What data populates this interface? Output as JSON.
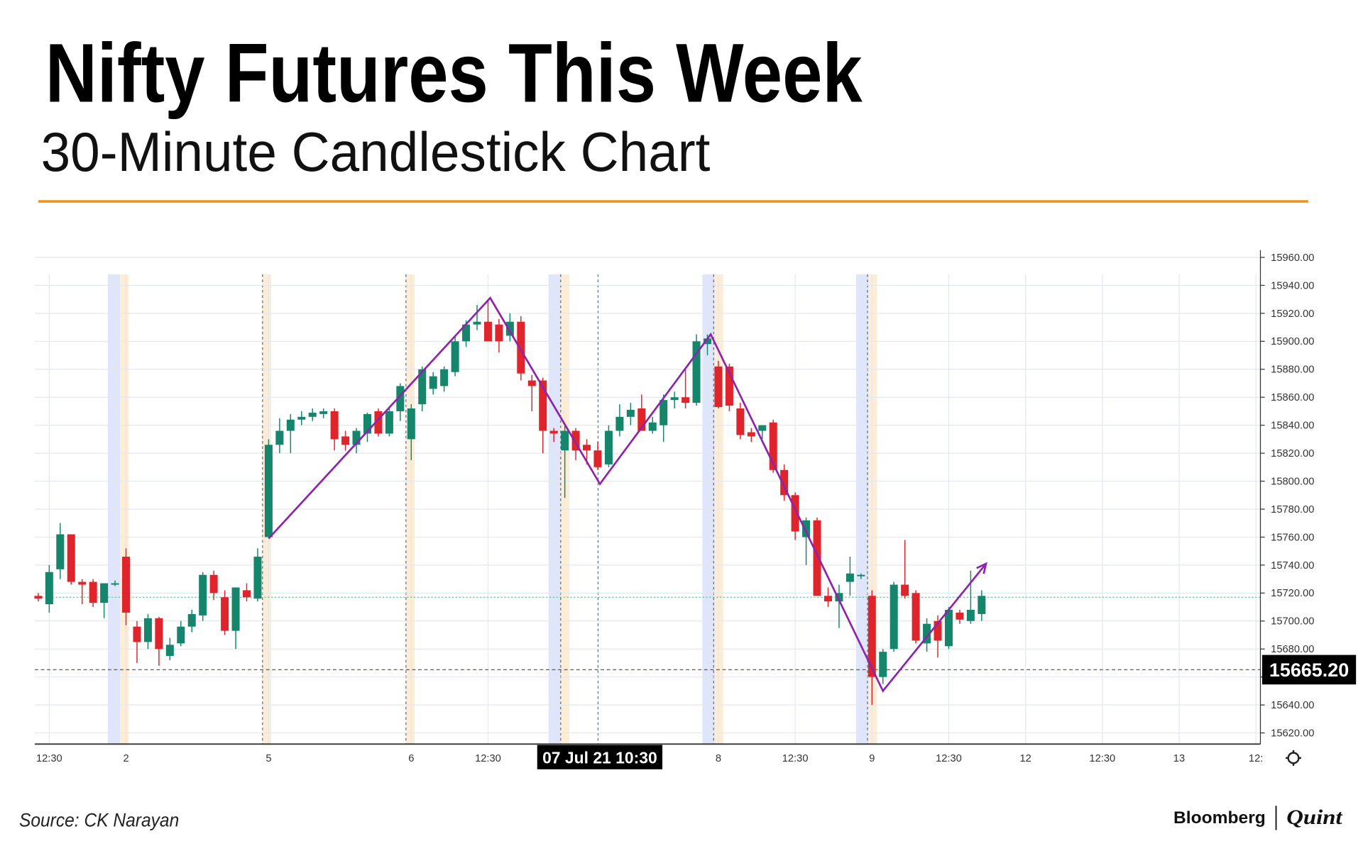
{
  "title": "Nifty Futures This Week",
  "subtitle": "30-Minute Candlestick Chart",
  "source": "Source: CK Narayan",
  "branding": {
    "left": "Bloomberg",
    "right": "Quint"
  },
  "chart_data": {
    "type": "candlestick",
    "up_color": "#15866b",
    "down_color": "#e0242b",
    "grid": true,
    "categories": [
      null,
      "12:30",
      null,
      null,
      null,
      null,
      null,
      null,
      "2",
      null,
      null,
      null,
      null,
      null,
      null,
      null,
      null,
      null,
      null,
      null,
      null,
      "5",
      null,
      null,
      null,
      null,
      null,
      null,
      null,
      null,
      null,
      null,
      null,
      null,
      "6",
      null,
      null,
      null,
      null,
      null,
      null,
      "12:30",
      null,
      null,
      null,
      null,
      null,
      null,
      null,
      null,
      null,
      null,
      null,
      null,
      null,
      null,
      null,
      null,
      null,
      null,
      null,
      null,
      "8",
      null,
      null,
      null,
      null,
      null,
      null,
      "12:30",
      null,
      null,
      null,
      null,
      null,
      null,
      "9",
      null,
      null,
      null,
      null,
      null,
      null,
      "12:30",
      null,
      null,
      null,
      null,
      null,
      null,
      "12",
      null,
      null,
      null,
      null,
      null,
      null,
      "12:30",
      null,
      null,
      null,
      null,
      null,
      null,
      "13",
      null,
      null,
      null,
      null,
      null,
      null,
      "12:"
    ],
    "open": [
      15718,
      15712,
      15737,
      15762,
      15728,
      15728,
      15713,
      15726,
      15746,
      15696,
      15685,
      15702,
      15675,
      15684,
      15696,
      15704,
      15733,
      15717,
      15693,
      15722,
      15716,
      15760,
      15826,
      15836,
      15844,
      15846,
      15848,
      15850,
      15832,
      15826,
      15834,
      15850,
      15834,
      15850,
      15830,
      15855,
      15866,
      15868,
      15878,
      15900,
      15912,
      15914,
      15912,
      15904,
      15914,
      15872,
      15872,
      15836,
      15822,
      15836,
      15826,
      15822,
      15812,
      15836,
      15846,
      15852,
      15836,
      15840,
      15858,
      15860,
      15856,
      15898,
      15882,
      15882,
      15852,
      15835,
      15836,
      15842,
      15808,
      15790,
      15760,
      15772,
      15718,
      15714,
      15728,
      15732,
      15718,
      15660,
      15680,
      15726,
      15720,
      15684,
      15700,
      15682,
      15706,
      15700,
      15705,
      null,
      null,
      null,
      null,
      null,
      null,
      null,
      null,
      null,
      null,
      null,
      null,
      null,
      null,
      null,
      null,
      null,
      null,
      null,
      null,
      null,
      null,
      null,
      null,
      null
    ],
    "high": [
      15720,
      15740,
      15770,
      15762,
      15730,
      15730,
      15727,
      15729,
      15752,
      15700,
      15705,
      15703,
      15688,
      15700,
      15708,
      15735,
      15736,
      15722,
      15724,
      15727,
      15752,
      15830,
      15845,
      15848,
      15850,
      15852,
      15852,
      15852,
      15836,
      15838,
      15849,
      15852,
      15852,
      15870,
      15855,
      15882,
      15878,
      15882,
      15904,
      15915,
      15926,
      15930,
      15916,
      15920,
      15918,
      15876,
      15874,
      15838,
      15840,
      15838,
      15830,
      15828,
      15840,
      15855,
      15856,
      15862,
      15846,
      15862,
      15864,
      15880,
      15905,
      15905,
      15886,
      15884,
      15856,
      15838,
      15840,
      15844,
      15812,
      15792,
      15774,
      15774,
      15724,
      15726,
      15746,
      15734,
      15722,
      15680,
      15728,
      15758,
      15722,
      15702,
      15704,
      15710,
      15708,
      15736,
      15722,
      null,
      null,
      null,
      null,
      null,
      null,
      null,
      null,
      null,
      null,
      null,
      null,
      null,
      null,
      null,
      null,
      null,
      null,
      null,
      null,
      null,
      null,
      null,
      null,
      null
    ],
    "low": [
      15714,
      15706,
      15730,
      15726,
      15712,
      15710,
      15702,
      15725,
      15697,
      15670,
      15680,
      15668,
      15672,
      15682,
      15692,
      15700,
      15715,
      15690,
      15680,
      15714,
      15714,
      15760,
      15820,
      15820,
      15840,
      15843,
      15845,
      15822,
      15822,
      15820,
      15828,
      15832,
      15832,
      15843,
      15815,
      15850,
      15862,
      15864,
      15875,
      15896,
      15908,
      15900,
      15892,
      15900,
      15872,
      15850,
      15820,
      15828,
      15788,
      15815,
      15812,
      15808,
      15810,
      15832,
      15840,
      15836,
      15834,
      15828,
      15852,
      15852,
      15854,
      15890,
      15852,
      15850,
      15830,
      15828,
      15830,
      15806,
      15786,
      15758,
      15740,
      15718,
      15710,
      15695,
      15718,
      15730,
      15640,
      15655,
      15678,
      15716,
      15684,
      15678,
      15674,
      15680,
      15698,
      15698,
      15700,
      null,
      null,
      null,
      null,
      null,
      null,
      null,
      null,
      null,
      null,
      null,
      null,
      null,
      null,
      null,
      null,
      null,
      null,
      null,
      null,
      null,
      null,
      null,
      null,
      null
    ],
    "close": [
      15716,
      15735,
      15762,
      15728,
      15726,
      15713,
      15727,
      15727,
      15706,
      15685,
      15702,
      15680,
      15683,
      15696,
      15705,
      15733,
      15720,
      15693,
      15724,
      15717,
      15746,
      15826,
      15836,
      15844,
      15846,
      15849,
      15850,
      15830,
      15826,
      15836,
      15848,
      15834,
      15850,
      15868,
      15852,
      15880,
      15875,
      15880,
      15900,
      15912,
      15914,
      15900,
      15900,
      15914,
      15877,
      15868,
      15836,
      15834,
      15836,
      15822,
      15822,
      15810,
      15836,
      15846,
      15851,
      15836,
      15842,
      15858,
      15860,
      15856,
      15900,
      15902,
      15853,
      15854,
      15833,
      15832,
      15840,
      15808,
      15790,
      15764,
      15772,
      15718,
      15714,
      15720,
      15734,
      15733,
      15660,
      15678,
      15726,
      15718,
      15686,
      15698,
      15686,
      15708,
      15701,
      15708,
      15718,
      null,
      null,
      null,
      null,
      null,
      null,
      null,
      null,
      null,
      null,
      null,
      null,
      null,
      null,
      null,
      null,
      null,
      null,
      null,
      null,
      null,
      null,
      null,
      null,
      null
    ],
    "ylim": [
      15612,
      15964
    ],
    "yticks": [
      {
        "value": 15620,
        "label": "15620.00"
      },
      {
        "value": 15640,
        "label": "15640.00"
      },
      {
        "value": 15660,
        "label": "15660.00"
      },
      {
        "value": 15680,
        "label": "15680.00"
      },
      {
        "value": 15700,
        "label": "15700.00"
      },
      {
        "value": 15720,
        "label": "15720.00"
      },
      {
        "value": 15740,
        "label": "15740.00"
      },
      {
        "value": 15760,
        "label": "15760.00"
      },
      {
        "value": 15780,
        "label": "15780.00"
      },
      {
        "value": 15800,
        "label": "15800.00"
      },
      {
        "value": 15820,
        "label": "15820.00"
      },
      {
        "value": 15840,
        "label": "15840.00"
      },
      {
        "value": 15860,
        "label": "15860.00"
      },
      {
        "value": 15880,
        "label": "15880.00"
      },
      {
        "value": 15900,
        "label": "15900.00"
      },
      {
        "value": 15920,
        "label": "15920.00"
      },
      {
        "value": 15940,
        "label": "15940.00"
      },
      {
        "value": 15960,
        "label": "15960.00"
      }
    ],
    "last_price": {
      "value": 15665.2,
      "label": "15665.20"
    },
    "reference_line": 15717,
    "crosshair_label": "07 Jul 21 10:30",
    "pattern": {
      "color": "#8e24aa",
      "x": [
        21,
        41.2,
        51.2,
        61.3,
        77,
        86.4
      ],
      "y": [
        15759,
        15931,
        15798,
        15905,
        15650,
        15741
      ]
    }
  }
}
